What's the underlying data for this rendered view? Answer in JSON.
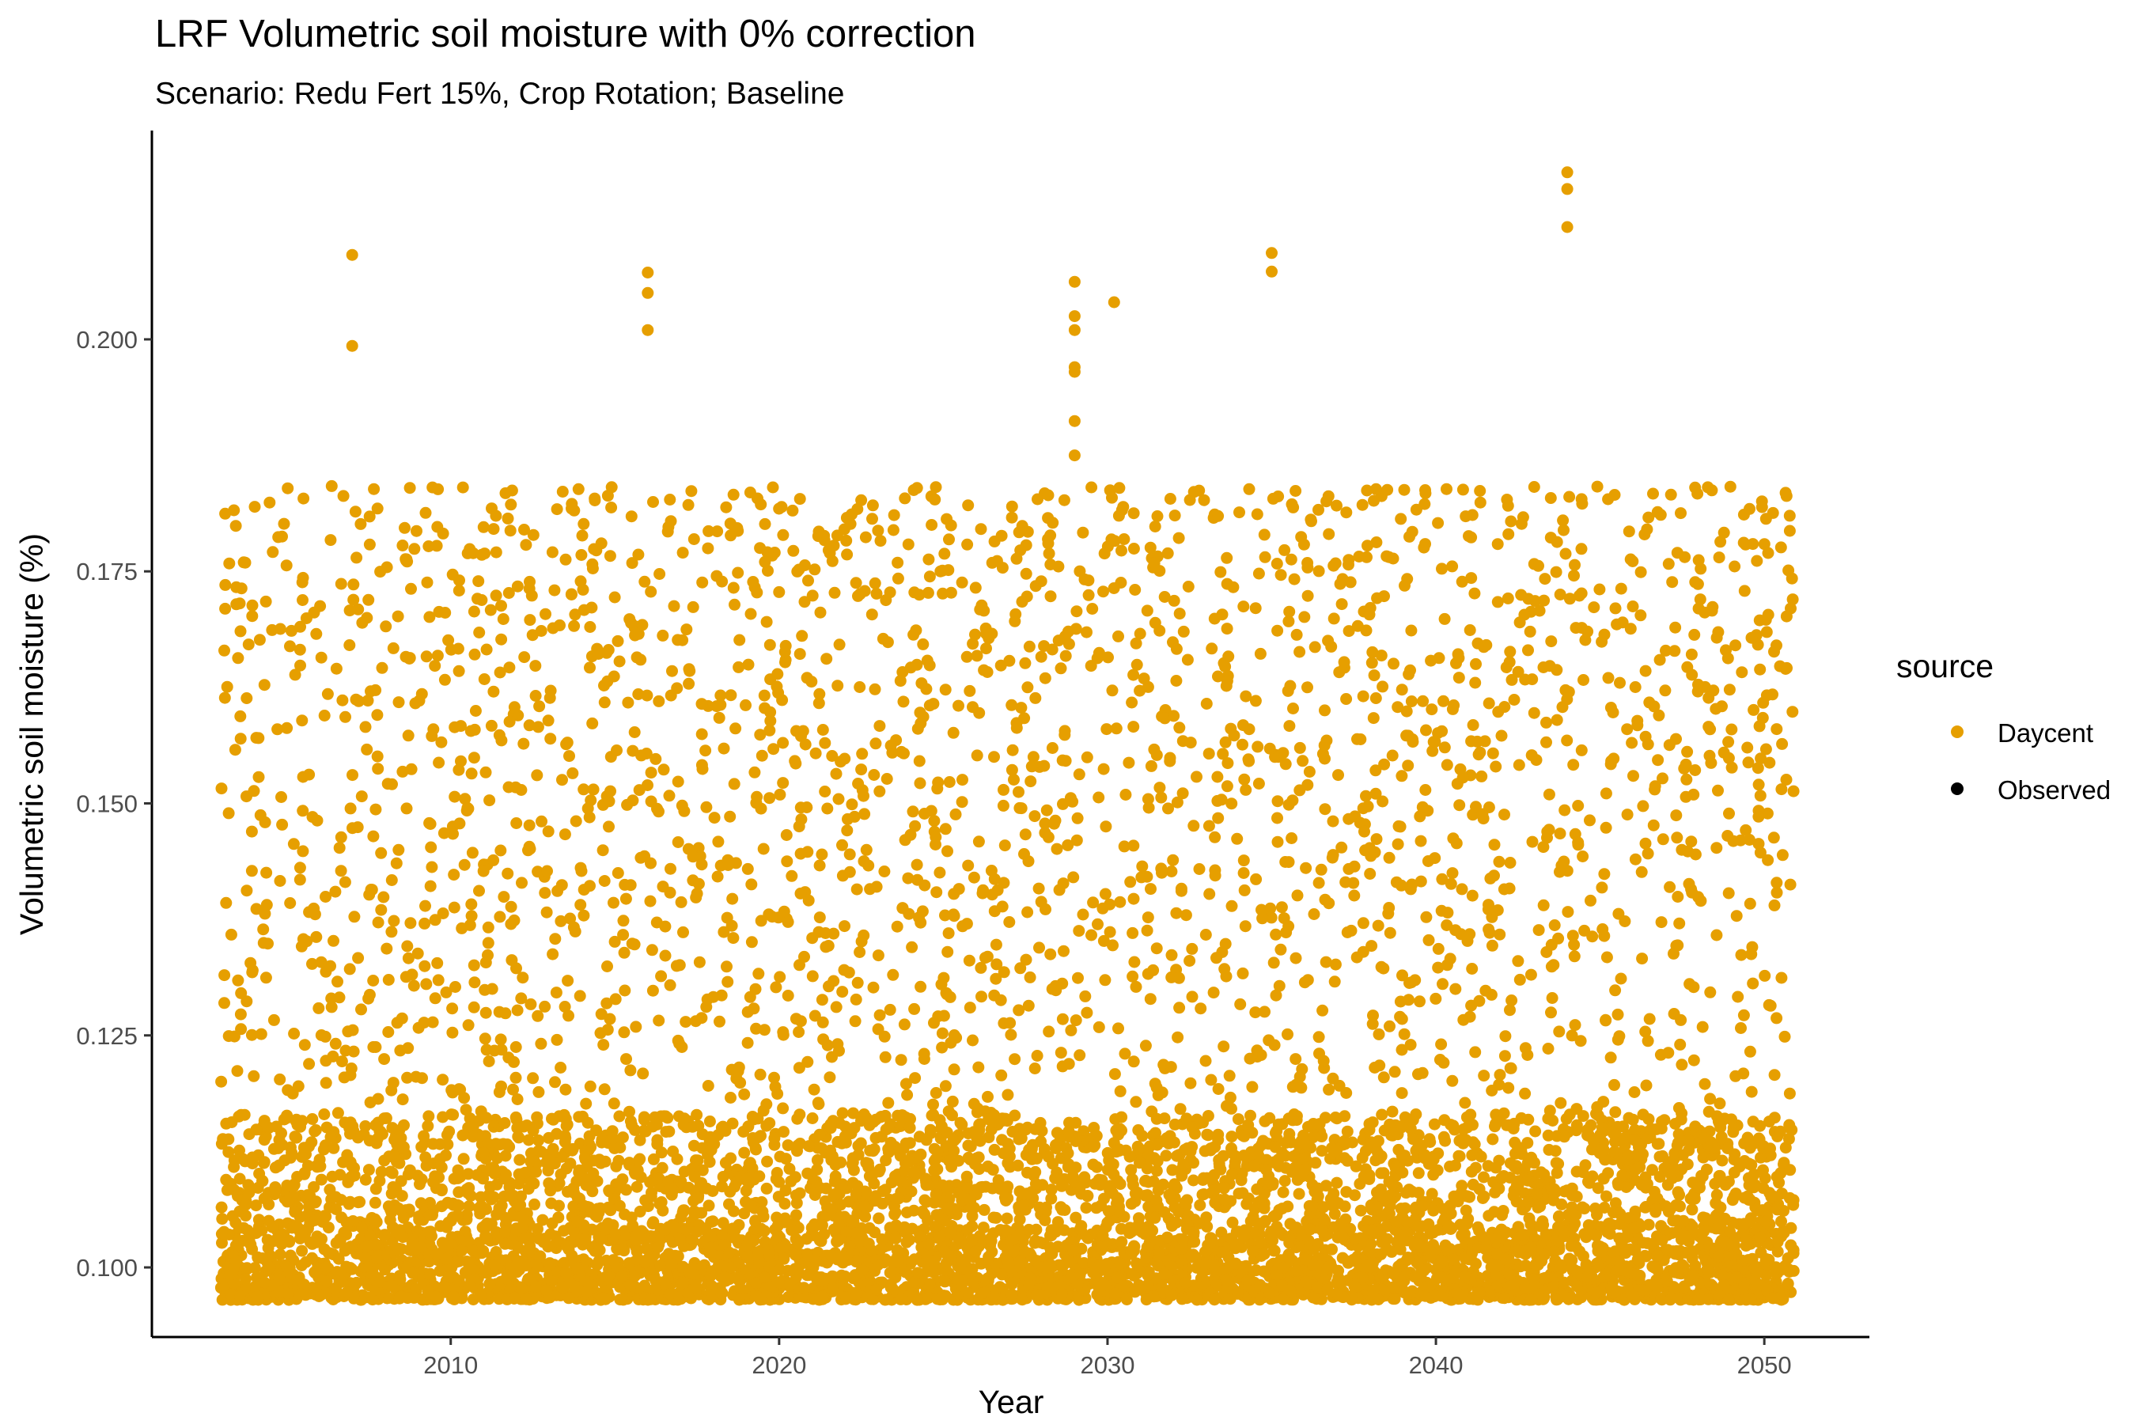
{
  "chart_data": {
    "type": "scatter",
    "title": "LRF Volumetric soil moisture with 0% correction",
    "subtitle": "Scenario: Redu Fert 15%, Crop Rotation; Baseline",
    "xlabel": "Year",
    "ylabel": "Volumetric soil moisture (%)",
    "xlim": [
      2000.9,
      2053.2
    ],
    "ylim": [
      0.0925,
      0.2225
    ],
    "x_ticks": [
      2010,
      2020,
      2030,
      2040,
      2050
    ],
    "y_ticks": [
      0.1,
      0.125,
      0.15,
      0.175,
      0.2
    ],
    "y_tick_labels": [
      "0.100",
      "0.125",
      "0.150",
      "0.175",
      "0.200"
    ],
    "x_tick_labels": [
      "2010",
      "2020",
      "2030",
      "2040",
      "2050"
    ],
    "grid": false,
    "legend": {
      "title": "source",
      "position": "right",
      "entries": [
        {
          "label": "Daycent",
          "color": "#E69F00"
        },
        {
          "label": "Observed",
          "color": "#000000"
        }
      ]
    },
    "series": [
      {
        "name": "Daycent",
        "color": "#E69F00",
        "x_range": [
          2003.0,
          2050.9
        ],
        "y_min": 0.0965,
        "y_max_typical": 0.1842,
        "note_points": "daily values, dense band",
        "outliers": [
          {
            "x": 2007.0,
            "y": 0.2091
          },
          {
            "x": 2007.0,
            "y": 0.1993
          },
          {
            "x": 2016.0,
            "y": 0.2072
          },
          {
            "x": 2016.0,
            "y": 0.205
          },
          {
            "x": 2016.0,
            "y": 0.201
          },
          {
            "x": 2029.0,
            "y": 0.2062
          },
          {
            "x": 2029.0,
            "y": 0.2025
          },
          {
            "x": 2029.0,
            "y": 0.201
          },
          {
            "x": 2029.0,
            "y": 0.197
          },
          {
            "x": 2029.0,
            "y": 0.1965
          },
          {
            "x": 2029.0,
            "y": 0.1912
          },
          {
            "x": 2029.0,
            "y": 0.1875
          },
          {
            "x": 2030.2,
            "y": 0.204
          },
          {
            "x": 2035.0,
            "y": 0.2093
          },
          {
            "x": 2035.0,
            "y": 0.2073
          },
          {
            "x": 2044.0,
            "y": 0.218
          },
          {
            "x": 2044.0,
            "y": 0.2162
          },
          {
            "x": 2044.0,
            "y": 0.2121
          }
        ]
      },
      {
        "name": "Observed",
        "color": "#000000",
        "points": []
      }
    ]
  }
}
